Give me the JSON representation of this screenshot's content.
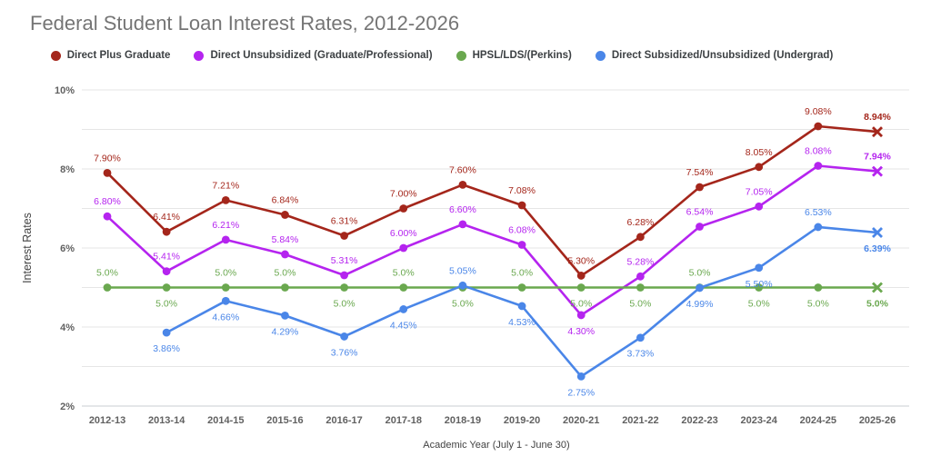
{
  "chart_data": {
    "type": "line",
    "title": "Federal Student Loan Interest Rates, 2012-2026",
    "xlabel": "Academic Year (July 1 - June 30)",
    "ylabel": "Interest Rates",
    "ylim": [
      2,
      10
    ],
    "grid": "horizontal gridlines every 1%, labeled every 2%",
    "legend_position": "top",
    "yticks": [
      {
        "value": 10,
        "label": "10%"
      },
      {
        "value": 8,
        "label": "8%"
      },
      {
        "value": 6,
        "label": "6%"
      },
      {
        "value": 4,
        "label": "4%"
      },
      {
        "value": 2,
        "label": "2%"
      }
    ],
    "categories": [
      "2012-13",
      "2013-14",
      "2014-15",
      "2015-16",
      "2016-17",
      "2017-18",
      "2018-19",
      "2019-20",
      "2020-21",
      "2021-22",
      "2022-23",
      "2023-24",
      "2024-25",
      "2025-26"
    ],
    "series": [
      {
        "id": "direct-plus-graduate",
        "name": "Direct Plus Graduate",
        "color": "#a4261b",
        "marker": "circle",
        "final_marker": "x",
        "values": [
          7.9,
          6.41,
          7.21,
          6.84,
          6.31,
          7.0,
          7.6,
          7.08,
          5.3,
          6.28,
          7.54,
          8.05,
          9.08,
          8.94
        ],
        "labels": [
          "7.90%",
          "6.41%",
          "7.21%",
          "6.84%",
          "6.31%",
          "7.00%",
          "7.60%",
          "7.08%",
          "5.30%",
          "6.28%",
          "7.54%",
          "8.05%",
          "9.08%",
          "8.94%"
        ],
        "label_side": [
          "above",
          "above",
          "above",
          "above",
          "above",
          "above",
          "above",
          "above",
          "above",
          "above",
          "above",
          "above",
          "above",
          "above"
        ]
      },
      {
        "id": "direct-unsubsidized-graduate",
        "name": "Direct Unsubsidized (Graduate/Professional)",
        "color": "#b524ef",
        "marker": "circle",
        "final_marker": "x",
        "values": [
          6.8,
          5.41,
          6.21,
          5.84,
          5.31,
          6.0,
          6.6,
          6.08,
          4.3,
          5.28,
          6.54,
          7.05,
          8.08,
          7.94
        ],
        "labels": [
          "6.80%",
          "5.41%",
          "6.21%",
          "5.84%",
          "5.31%",
          "6.00%",
          "6.60%",
          "6.08%",
          "4.30%",
          "5.28%",
          "6.54%",
          "7.05%",
          "8.08%",
          "7.94%"
        ],
        "label_side": [
          "above",
          "above",
          "above",
          "above",
          "above",
          "above",
          "above",
          "above",
          "below",
          "above",
          "above",
          "above",
          "above",
          "above"
        ]
      },
      {
        "id": "hpsl-lds-perkins",
        "name": "HPSL/LDS/(Perkins)",
        "color": "#6aa84f",
        "marker": "circle",
        "final_marker": "x",
        "values": [
          5.0,
          5.0,
          5.0,
          5.0,
          5.0,
          5.0,
          5.0,
          5.0,
          5.0,
          5.0,
          5.0,
          5.0,
          5.0,
          5.0
        ],
        "labels": [
          "5.0%",
          "5.0%",
          "5.0%",
          "5.0%",
          "5.0%",
          "5.0%",
          "5.0%",
          "5.0%",
          "5.0%",
          "5.0%",
          "5.0%",
          "5.0%",
          "5.0%",
          "5.0%"
        ],
        "label_side": [
          "above",
          "below",
          "above",
          "above",
          "below",
          "above",
          "below",
          "above",
          "below",
          "below",
          "above",
          "below",
          "below",
          "below"
        ]
      },
      {
        "id": "direct-subsidized-undergrad",
        "name": "Direct Subsidized/Unsubsidized (Undergrad)",
        "color": "#4a86e8",
        "marker": "circle",
        "final_marker": "x",
        "values": [
          null,
          3.86,
          4.66,
          4.29,
          3.76,
          4.45,
          5.05,
          4.53,
          2.75,
          3.73,
          4.99,
          5.5,
          6.53,
          6.39
        ],
        "labels": [
          null,
          "3.86%",
          "4.66%",
          "4.29%",
          "3.76%",
          "4.45%",
          "5.05%",
          "4.53%",
          "2.75%",
          "3.73%",
          "4.99%",
          "5.50%",
          "6.53%",
          "6.39%"
        ],
        "label_side": [
          null,
          "below",
          "below",
          "below",
          "below",
          "below",
          "above",
          "below",
          "below",
          "below",
          "below",
          "below",
          "above",
          "below"
        ]
      }
    ]
  }
}
